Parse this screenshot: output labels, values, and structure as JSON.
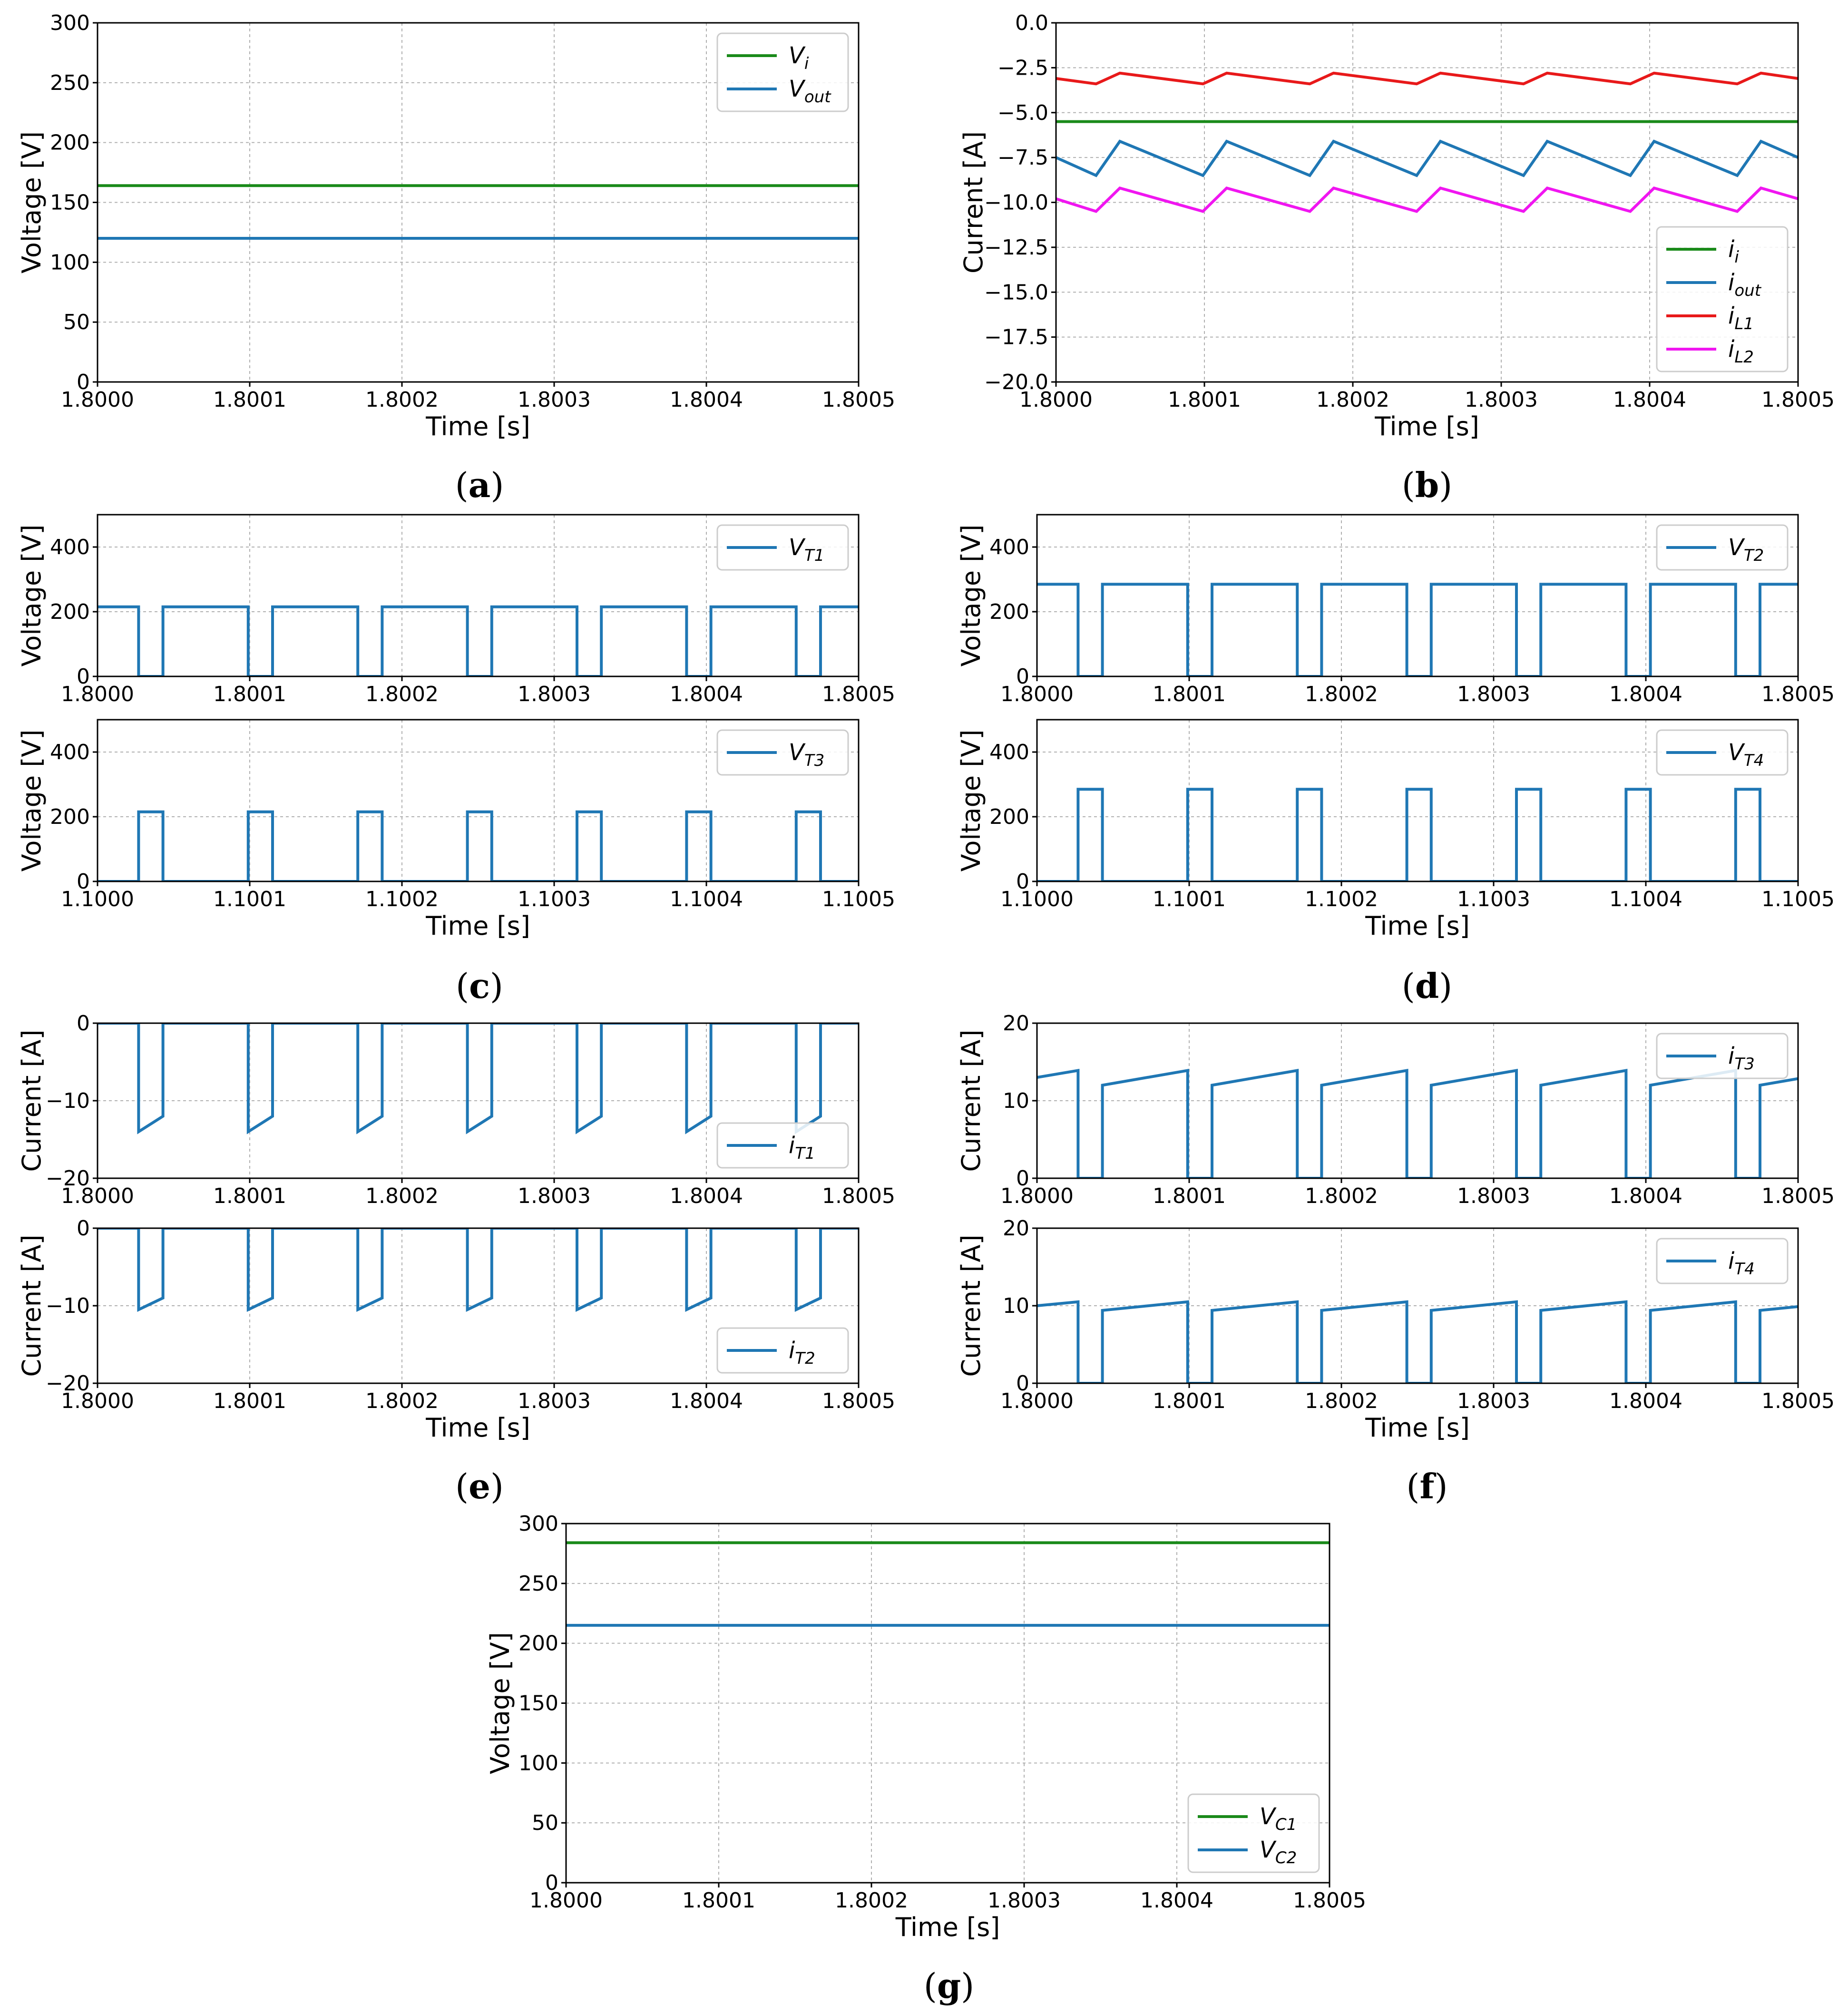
{
  "chart_data": [
    {
      "id": "a",
      "type": "line",
      "sublabel": "a",
      "xlabel": "Time [s]",
      "ylabel": "Voltage [V]",
      "xlim": [
        1.8,
        1.8005
      ],
      "ylim": [
        0,
        300
      ],
      "xticks": [
        "1.8000",
        "1.8001",
        "1.8002",
        "1.8003",
        "1.8004",
        "1.8005"
      ],
      "yticks": [
        "0",
        "50",
        "100",
        "150",
        "200",
        "250",
        "300"
      ],
      "ytick_values": [
        0,
        50,
        100,
        150,
        200,
        250,
        300
      ],
      "grid": true,
      "legend_position": "top-right",
      "series": [
        {
          "name": "V",
          "sub": "i",
          "color": "#1a8a1a",
          "x": [
            1.8,
            1.8005
          ],
          "y": [
            164,
            164
          ]
        },
        {
          "name": "V",
          "sub": "out",
          "color": "#1f77b4",
          "x": [
            1.8,
            1.8005
          ],
          "y": [
            120,
            120
          ]
        }
      ]
    },
    {
      "id": "b",
      "type": "line",
      "sublabel": "b",
      "xlabel": "Time [s]",
      "ylabel": "Current [A]",
      "xlim": [
        1.8,
        1.8005
      ],
      "ylim": [
        -20,
        0
      ],
      "xticks": [
        "1.8000",
        "1.8001",
        "1.8002",
        "1.8003",
        "1.8004",
        "1.8005"
      ],
      "yticks": [
        "0.0",
        "−2.5",
        "−5.0",
        "−7.5",
        "−10.0",
        "−12.5",
        "−15.0",
        "−17.5",
        "−20.0"
      ],
      "ytick_values": [
        0,
        -2.5,
        -5,
        -7.5,
        -10,
        -12.5,
        -15,
        -17.5,
        -20
      ],
      "grid": true,
      "legend_position": "bottom-right",
      "series": [
        {
          "name": "i",
          "sub": "i",
          "color": "#1a8a1a",
          "x": [
            1.8,
            1.8005
          ],
          "y": [
            -5.5,
            -5.5
          ]
        },
        {
          "name": "i",
          "sub": "out",
          "color": "#1f77b4",
          "x": [
            1.8,
            1.800027,
            1.800043,
            1.800099,
            1.800115,
            1.800171,
            1.800187,
            1.800243,
            1.800259,
            1.800315,
            1.800331,
            1.800387,
            1.800403,
            1.800459,
            1.800475,
            1.8005
          ],
          "y": [
            -7.5,
            -8.5,
            -6.6,
            -8.5,
            -6.6,
            -8.5,
            -6.6,
            -8.5,
            -6.6,
            -8.5,
            -6.6,
            -8.5,
            -6.6,
            -8.5,
            -6.6,
            -7.5
          ]
        },
        {
          "name": "i",
          "sub": "L1",
          "color": "#e8191a",
          "x": [
            1.8,
            1.800027,
            1.800043,
            1.800099,
            1.800115,
            1.800171,
            1.800187,
            1.800243,
            1.800259,
            1.800315,
            1.800331,
            1.800387,
            1.800403,
            1.800459,
            1.800475,
            1.8005
          ],
          "y": [
            -3.1,
            -3.4,
            -2.8,
            -3.4,
            -2.8,
            -3.4,
            -2.8,
            -3.4,
            -2.8,
            -3.4,
            -2.8,
            -3.4,
            -2.8,
            -3.4,
            -2.8,
            -3.1
          ]
        },
        {
          "name": "i",
          "sub": "L2",
          "color": "#f016f0",
          "x": [
            1.8,
            1.800027,
            1.800043,
            1.800099,
            1.800115,
            1.800171,
            1.800187,
            1.800243,
            1.800259,
            1.800315,
            1.800331,
            1.800387,
            1.800403,
            1.800459,
            1.800475,
            1.8005
          ],
          "y": [
            -9.8,
            -10.5,
            -9.2,
            -10.5,
            -9.2,
            -10.5,
            -9.2,
            -10.5,
            -9.2,
            -10.5,
            -9.2,
            -10.5,
            -9.2,
            -10.5,
            -9.2,
            -9.8
          ]
        }
      ]
    },
    {
      "id": "c_top",
      "type": "line",
      "xlabel": "",
      "ylabel": "Voltage [V]",
      "xlim": [
        1.8,
        1.8005
      ],
      "ylim": [
        0,
        500
      ],
      "xticks": [
        "1.8000",
        "1.8001",
        "1.8002",
        "1.8003",
        "1.8004",
        "1.8005"
      ],
      "yticks": [
        "0",
        "200",
        "400"
      ],
      "ytick_values": [
        0,
        200,
        400
      ],
      "grid": true,
      "legend_position": "top-right",
      "series": [
        {
          "name": "V",
          "sub": "T1",
          "color": "#1f77b4",
          "pulse": {
            "start": 1.800027,
            "width": 1.6e-05,
            "period": 7.2e-05,
            "hi": 215,
            "lo": 0,
            "inverted": true
          }
        }
      ]
    },
    {
      "id": "c_bottom",
      "type": "line",
      "sublabel": "c",
      "xlabel": "Time [s]",
      "ylabel": "Voltage [V]",
      "xlim": [
        1.1,
        1.1005
      ],
      "ylim": [
        0,
        500
      ],
      "xticks": [
        "1.1000",
        "1.1001",
        "1.1002",
        "1.1003",
        "1.1004",
        "1.1005"
      ],
      "yticks": [
        "0",
        "200",
        "400"
      ],
      "ytick_values": [
        0,
        200,
        400
      ],
      "grid": true,
      "legend_position": "top-right",
      "series": [
        {
          "name": "V",
          "sub": "T3",
          "color": "#1f77b4",
          "pulse": {
            "start": 1.100027,
            "width": 1.6e-05,
            "period": 7.2e-05,
            "hi": 215,
            "lo": 0,
            "inverted": false
          }
        }
      ]
    },
    {
      "id": "d_top",
      "type": "line",
      "xlabel": "",
      "ylabel": "Voltage [V]",
      "xlim": [
        1.8,
        1.8005
      ],
      "ylim": [
        0,
        500
      ],
      "xticks": [
        "1.8000",
        "1.8001",
        "1.8002",
        "1.8003",
        "1.8004",
        "1.8005"
      ],
      "yticks": [
        "0",
        "200",
        "400"
      ],
      "ytick_values": [
        0,
        200,
        400
      ],
      "grid": true,
      "legend_position": "top-right",
      "series": [
        {
          "name": "V",
          "sub": "T2",
          "color": "#1f77b4",
          "pulse": {
            "start": 1.800027,
            "width": 1.6e-05,
            "period": 7.2e-05,
            "hi": 285,
            "lo": 0,
            "inverted": true
          }
        }
      ]
    },
    {
      "id": "d_bottom",
      "type": "line",
      "sublabel": "d",
      "xlabel": "Time [s]",
      "ylabel": "Voltage [V]",
      "xlim": [
        1.1,
        1.1005
      ],
      "ylim": [
        0,
        500
      ],
      "xticks": [
        "1.1000",
        "1.1001",
        "1.1002",
        "1.1003",
        "1.1004",
        "1.1005"
      ],
      "yticks": [
        "0",
        "200",
        "400"
      ],
      "ytick_values": [
        0,
        200,
        400
      ],
      "grid": true,
      "legend_position": "top-right",
      "series": [
        {
          "name": "V",
          "sub": "T4",
          "color": "#1f77b4",
          "pulse": {
            "start": 1.100027,
            "width": 1.6e-05,
            "period": 7.2e-05,
            "hi": 285,
            "lo": 0,
            "inverted": false
          }
        }
      ]
    },
    {
      "id": "e_top",
      "type": "line",
      "xlabel": "",
      "ylabel": "Current [A]",
      "xlim": [
        1.8,
        1.8005
      ],
      "ylim": [
        -20,
        0
      ],
      "xticks": [
        "1.8000",
        "1.8001",
        "1.8002",
        "1.8003",
        "1.8004",
        "1.8005"
      ],
      "yticks": [
        "0",
        "−10",
        "−20"
      ],
      "ytick_values": [
        0,
        -10,
        -20
      ],
      "grid": true,
      "legend_position": "bottom-right",
      "series": [
        {
          "name": "i",
          "sub": "T1",
          "color": "#1f77b4",
          "ramp": {
            "start": 1.800027,
            "width": 1.6e-05,
            "period": 7.2e-05,
            "base": 0,
            "v_start": -14,
            "v_end": -12,
            "on_inside": true
          }
        }
      ]
    },
    {
      "id": "e_bottom",
      "type": "line",
      "sublabel": "e",
      "xlabel": "Time [s]",
      "ylabel": "Current [A]",
      "xlim": [
        1.8,
        1.8005
      ],
      "ylim": [
        -20,
        0
      ],
      "xticks": [
        "1.8000",
        "1.8001",
        "1.8002",
        "1.8003",
        "1.8004",
        "1.8005"
      ],
      "yticks": [
        "0",
        "−10",
        "−20"
      ],
      "ytick_values": [
        0,
        -10,
        -20
      ],
      "grid": true,
      "legend_position": "bottom-right",
      "series": [
        {
          "name": "i",
          "sub": "T2",
          "color": "#1f77b4",
          "ramp": {
            "start": 1.800027,
            "width": 1.6e-05,
            "period": 7.2e-05,
            "base": 0,
            "v_start": -10.5,
            "v_end": -9,
            "on_inside": true
          }
        }
      ]
    },
    {
      "id": "f_top",
      "type": "line",
      "xlabel": "",
      "ylabel": "Current [A]",
      "xlim": [
        1.8,
        1.8005
      ],
      "ylim": [
        0,
        20
      ],
      "xticks": [
        "1.8000",
        "1.8001",
        "1.8002",
        "1.8003",
        "1.8004",
        "1.8005"
      ],
      "yticks": [
        "0",
        "10",
        "20"
      ],
      "ytick_values": [
        0,
        10,
        20
      ],
      "grid": true,
      "legend_position": "top-right",
      "series": [
        {
          "name": "i",
          "sub": "T3",
          "color": "#1f77b4",
          "ramp": {
            "start": 1.800027,
            "width": 1.6e-05,
            "period": 7.2e-05,
            "base": 0,
            "v_start": 12,
            "v_end": 13.9,
            "on_inside": false,
            "initial": 13
          }
        }
      ]
    },
    {
      "id": "f_bottom",
      "type": "line",
      "sublabel": "f",
      "xlabel": "Time [s]",
      "ylabel": "Current [A]",
      "xlim": [
        1.8,
        1.8005
      ],
      "ylim": [
        0,
        20
      ],
      "xticks": [
        "1.8000",
        "1.8001",
        "1.8002",
        "1.8003",
        "1.8004",
        "1.8005"
      ],
      "yticks": [
        "0",
        "10",
        "20"
      ],
      "ytick_values": [
        0,
        10,
        20
      ],
      "grid": true,
      "legend_position": "top-right",
      "series": [
        {
          "name": "i",
          "sub": "T4",
          "color": "#1f77b4",
          "ramp": {
            "start": 1.800027,
            "width": 1.6e-05,
            "period": 7.2e-05,
            "base": 0,
            "v_start": 9.4,
            "v_end": 10.5,
            "on_inside": false,
            "initial": 10
          }
        }
      ]
    },
    {
      "id": "g",
      "type": "line",
      "sublabel": "g",
      "xlabel": "Time [s]",
      "ylabel": "Voltage [V]",
      "xlim": [
        1.8,
        1.8005
      ],
      "ylim": [
        0,
        300
      ],
      "xticks": [
        "1.8000",
        "1.8001",
        "1.8002",
        "1.8003",
        "1.8004",
        "1.8005"
      ],
      "yticks": [
        "0",
        "50",
        "100",
        "150",
        "200",
        "250",
        "300"
      ],
      "ytick_values": [
        0,
        50,
        100,
        150,
        200,
        250,
        300
      ],
      "grid": true,
      "legend_position": "bottom-right",
      "series": [
        {
          "name": "V",
          "sub": "C1",
          "color": "#1a8a1a",
          "x": [
            1.8,
            1.8005
          ],
          "y": [
            284,
            284
          ]
        },
        {
          "name": "V",
          "sub": "C2",
          "color": "#1f77b4",
          "x": [
            1.8,
            1.8005
          ],
          "y": [
            215,
            215
          ]
        }
      ]
    }
  ]
}
